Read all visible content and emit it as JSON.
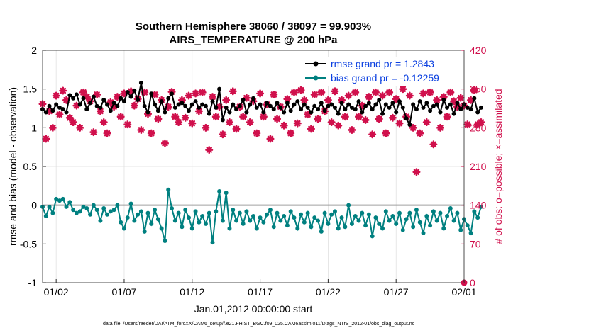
{
  "chart_data": {
    "type": "line",
    "title": "Southern Hemisphere 38060 / 38097 = 99.903%",
    "subtitle": "AIRS_TEMPERATURE @ 200 hPa",
    "xlabel": "Jan.01,2012 00:00:00 start",
    "ylabel": "rmse and bias (model - observation)",
    "ylabel_right": "# of obs: o=possible; ×=assimilated",
    "xlim": [
      0.5,
      31.5
    ],
    "ylim": [
      -1,
      2
    ],
    "ylim_right": [
      0,
      420
    ],
    "x_tick_values": [
      1.5,
      6.5,
      11.5,
      16.5,
      21.5,
      26.5,
      31.5
    ],
    "x_tick_labels": [
      "01/02",
      "01/07",
      "01/12",
      "01/17",
      "01/22",
      "01/27",
      "02/01"
    ],
    "y_tick_labels": [
      "-1",
      "-0.5",
      "0",
      "0.5",
      "1",
      "1.5",
      "2"
    ],
    "y_tick_values": [
      -1,
      -0.5,
      0,
      0.5,
      1,
      1.5,
      2
    ],
    "y_right_tick_labels": [
      "0",
      "70",
      "140",
      "210",
      "280",
      "350",
      "420"
    ],
    "y_right_tick_values": [
      0,
      70,
      140,
      210,
      280,
      350,
      420
    ],
    "zero_line": 0,
    "colors": {
      "rmse": "#000000",
      "bias": "#008080",
      "obs": "#d0104c",
      "zero": "#a0a0a0",
      "grid": "#dcdcdc",
      "legend_text": "#0a3fe0"
    },
    "series": [
      {
        "name": "rmse grand pr = 1.2843",
        "x_start": 0.5,
        "x_step": 0.25,
        "values": [
          1.24,
          1.2,
          1.28,
          1.22,
          1.3,
          1.26,
          1.24,
          1.2,
          1.42,
          1.38,
          1.43,
          1.3,
          1.38,
          1.24,
          1.32,
          1.4,
          1.28,
          1.26,
          1.36,
          1.3,
          1.22,
          1.32,
          1.28,
          1.38,
          1.34,
          1.46,
          1.4,
          1.48,
          1.36,
          1.58,
          1.28,
          1.2,
          1.44,
          1.3,
          1.22,
          1.34,
          1.2,
          1.38,
          1.44,
          1.26,
          1.3,
          1.32,
          1.28,
          1.22,
          1.3,
          1.34,
          1.26,
          1.3,
          1.28,
          1.18,
          1.34,
          1.26,
          1.5,
          1.1,
          1.26,
          1.2,
          1.3,
          1.24,
          1.28,
          1.36,
          1.2,
          1.3,
          1.38,
          1.26,
          1.3,
          1.2,
          1.32,
          1.28,
          1.24,
          1.32,
          1.26,
          1.2,
          1.32,
          1.22,
          1.3,
          1.34,
          1.24,
          1.3,
          1.26,
          1.2,
          1.28,
          1.24,
          1.32,
          1.22,
          1.28,
          1.3,
          1.26,
          1.18,
          1.32,
          1.24,
          1.3,
          1.26,
          1.24,
          1.34,
          1.2,
          1.28,
          1.32,
          1.24,
          1.3,
          1.36,
          1.18,
          1.3,
          1.26,
          1.32,
          1.2,
          1.34,
          1.26,
          1.12,
          1.04,
          1.3,
          1.24,
          1.34,
          1.26,
          1.32,
          1.22,
          1.28,
          1.3,
          1.2,
          1.36,
          1.26,
          1.3,
          1.18,
          1.32,
          1.24,
          1.3,
          1.26,
          1.24,
          1.38,
          1.2,
          1.26
        ]
      },
      {
        "name": "bias grand pr = -0.12259",
        "x_start": 0.5,
        "x_step": 0.25,
        "values": [
          -0.02,
          -0.14,
          -0.02,
          -0.1,
          0.08,
          0.06,
          0.08,
          -0.02,
          0.04,
          -0.06,
          -0.1,
          -0.08,
          -0.02,
          -0.04,
          -0.12,
          0.0,
          -0.06,
          -0.2,
          -0.04,
          -0.12,
          -0.08,
          -0.06,
          0.0,
          -0.22,
          -0.3,
          -0.16,
          0.02,
          -0.2,
          -0.12,
          -0.08,
          -0.34,
          -0.1,
          -0.24,
          -0.06,
          -0.18,
          -0.3,
          -0.46,
          0.2,
          -0.04,
          -0.2,
          -0.1,
          -0.28,
          -0.06,
          -0.16,
          -0.3,
          -0.08,
          -0.22,
          -0.14,
          -0.24,
          -0.1,
          -0.48,
          -0.08,
          0.18,
          -0.2,
          0.16,
          -0.3,
          -0.06,
          -0.2,
          -0.1,
          -0.24,
          -0.08,
          -0.2,
          -0.14,
          -0.3,
          -0.16,
          -0.22,
          -0.12,
          -0.06,
          -0.28,
          -0.1,
          -0.2,
          -0.14,
          -0.26,
          -0.08,
          -0.16,
          -0.3,
          -0.12,
          -0.22,
          -0.1,
          -0.28,
          -0.16,
          -0.2,
          -0.34,
          -0.1,
          -0.24,
          -0.12,
          -0.08,
          -0.3,
          -0.16,
          -0.28,
          0.0,
          -0.24,
          -0.14,
          -0.2,
          -0.1,
          -0.26,
          -0.12,
          -0.4,
          -0.16,
          -0.24,
          -0.3,
          -0.08,
          -0.2,
          -0.14,
          -0.24,
          -0.1,
          -0.32,
          -0.18,
          -0.1,
          -0.28,
          -0.06,
          -0.22,
          -0.36,
          -0.14,
          -0.26,
          -0.08,
          -0.2,
          -0.1,
          -0.3,
          -0.14,
          -0.04,
          -0.2,
          -0.1,
          -0.32,
          -0.18,
          -0.26,
          -0.36,
          -0.08,
          -0.16,
          -0.02
        ]
      },
      {
        "name": "# of obs assimilated",
        "x_start": 0.5,
        "x_step": 0.25,
        "values": [
          323,
          260,
          310,
          280,
          338,
          304,
          347,
          330,
          298,
          290,
          320,
          280,
          344,
          336,
          328,
          272,
          340,
          310,
          290,
          270,
          326,
          318,
          336,
          300,
          342,
          286,
          346,
          320,
          332,
          276,
          344,
          305,
          270,
          340,
          296,
          330,
          252,
          318,
          345,
          300,
          290,
          330,
          298,
          338,
          288,
          342,
          310,
          344,
          280,
          240,
          336,
          300,
          318,
          268,
          330,
          290,
          346,
          278,
          318,
          300,
          334,
          290,
          328,
          270,
          342,
          300,
          322,
          260,
          340,
          296,
          318,
          284,
          332,
          270,
          344,
          288,
          348,
          330,
          304,
          278,
          340,
          296,
          344,
          310,
          330,
          290,
          346,
          284,
          330,
          300,
          338,
          276,
          344,
          300,
          320,
          294,
          336,
          268,
          344,
          296,
          338,
          270,
          344,
          298,
          332,
          288,
          350,
          300,
          338,
          280,
          200,
          270,
          342,
          290,
          344,
          250,
          330,
          280,
          336,
          300,
          344,
          328,
          318,
          334,
          320,
          286,
          330,
          348,
          286,
          290
        ]
      }
    ],
    "legend": [
      {
        "label": "rmse grand pr = 1.2843",
        "series": 0
      },
      {
        "label": "bias grand pr = -0.12259",
        "series": 1
      }
    ],
    "legend_position": "top-right"
  },
  "footer": {
    "data_file": "data file: /Users/raeder/DAI/ATM_forcXX/CAM6_setup/f.e21.FHIST_BGC.f09_025.CAM6assim.011/Diags_NTrS_2012-01/obs_diag_output.nc"
  }
}
